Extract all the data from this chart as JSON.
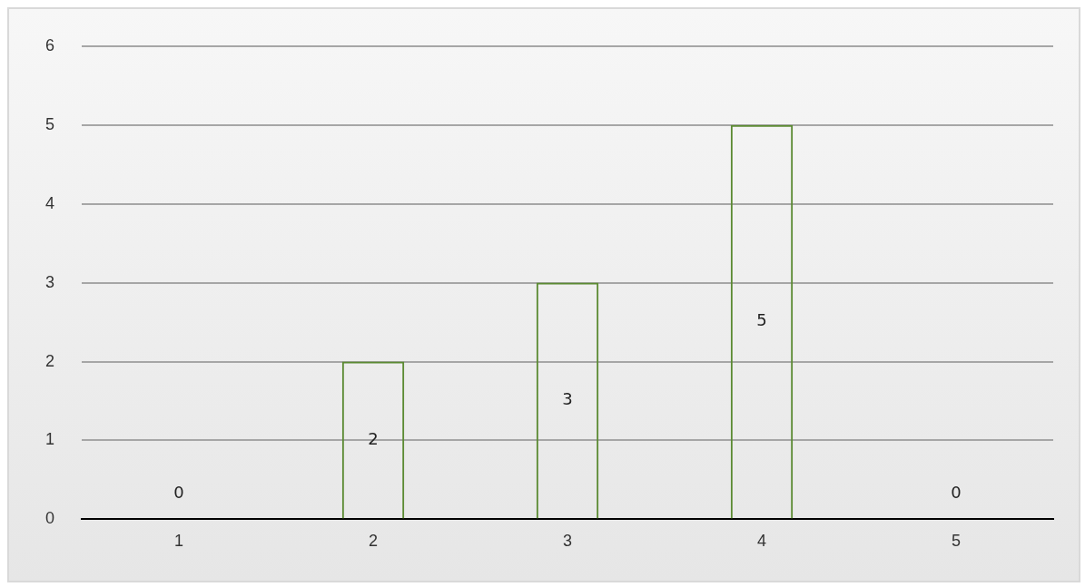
{
  "chart_data": {
    "type": "bar",
    "categories": [
      "1",
      "2",
      "3",
      "4",
      "5"
    ],
    "values": [
      0,
      2,
      3,
      5,
      0
    ],
    "color": "#5b8a32",
    "ylim": [
      0,
      6
    ],
    "yticks": [
      0,
      1,
      2,
      3,
      4,
      5,
      6
    ],
    "grid": "y",
    "legend": false,
    "data_labels": true
  }
}
